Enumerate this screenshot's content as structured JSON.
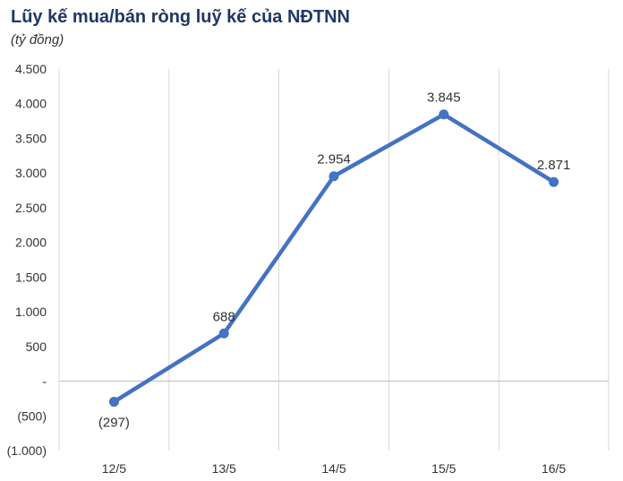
{
  "chart_data": {
    "type": "line",
    "title": "Lũy kế mua/bán ròng luỹ kế của NĐTNN",
    "subtitle": "(tỷ đồng)",
    "categories": [
      "12/5",
      "13/5",
      "14/5",
      "15/5",
      "16/5"
    ],
    "series": [
      {
        "values": [
          -297,
          688,
          2954,
          3845,
          2871
        ],
        "labels": [
          "(297)",
          "688",
          "2.954",
          "3.845",
          "2.871"
        ],
        "color": "#4472c4"
      }
    ],
    "ylim": [
      -1000,
      4500
    ],
    "yticks": [
      {
        "value": 4500,
        "label": "4.500"
      },
      {
        "value": 4000,
        "label": "4.000"
      },
      {
        "value": 3500,
        "label": "3.500"
      },
      {
        "value": 3000,
        "label": "3.000"
      },
      {
        "value": 2500,
        "label": "2.500"
      },
      {
        "value": 2000,
        "label": "2.000"
      },
      {
        "value": 1500,
        "label": "1.500"
      },
      {
        "value": 1000,
        "label": "1.000"
      },
      {
        "value": 500,
        "label": "500"
      },
      {
        "value": 0,
        "label": "-"
      },
      {
        "value": -500,
        "label": "(500)"
      },
      {
        "value": -1000,
        "label": "(1.000)"
      }
    ],
    "grid": "vertical"
  }
}
